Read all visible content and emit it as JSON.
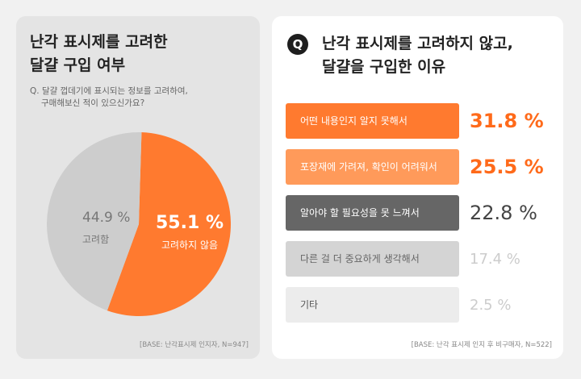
{
  "left": {
    "title_lines": [
      "난각 표시제를  고려한",
      "달걀 구입 여부"
    ],
    "question_lines": [
      "Q. 달걀 껍데기에 표시되는 정보를 고려하여,",
      "구매해보신 적이 있으신가요?"
    ],
    "base_note": "[BASE: 난각표시제 인지자, N=947]"
  },
  "right": {
    "icon_letter": "Q",
    "title_lines": [
      "난각 표시제를 고려하지 않고,",
      "달걀을 구입한 이유"
    ],
    "base_note": "[BASE: 난각 표시제 인지 후 비구매자, N=522]"
  },
  "chart_data": [
    {
      "type": "pie",
      "title": "난각 표시제를 고려한 달걀 구입 여부",
      "slices": [
        {
          "label": "고려하지 않음",
          "value": 55.1,
          "value_label": "55.1 %",
          "color": "#ff7a2f"
        },
        {
          "label": "고려함",
          "value": 44.9,
          "value_label": "44.9 %",
          "color": "#cdcdcd"
        }
      ]
    },
    {
      "type": "bar",
      "orientation": "horizontal",
      "title": "난각 표시제를 고려하지 않고, 달걀을 구입한 이유",
      "categories": [
        "어떤 내용인지 알지 못해서",
        "포장재에 가려져, 확인이 어려워서",
        "알아야 할 필요성을 못 느껴서",
        "다른 걸 더 중요하게 생각해서",
        "기타"
      ],
      "values": [
        31.8,
        25.5,
        22.8,
        17.4,
        2.5
      ],
      "value_labels": [
        "31.8 %",
        "25.5 %",
        "22.8 %",
        "17.4 %",
        "2.5 %"
      ],
      "bar_colors": [
        "#ff7a2f",
        "#ff9a5a",
        "#666666",
        "#d4d4d4",
        "#ececec"
      ],
      "label_colors": [
        "#ffffff",
        "#ffffff",
        "#ffffff",
        "#666666",
        "#555555"
      ],
      "value_colors": [
        "#ff6a1a",
        "#ff6a1a",
        "#444444",
        "#cccccc",
        "#cccccc"
      ]
    }
  ]
}
